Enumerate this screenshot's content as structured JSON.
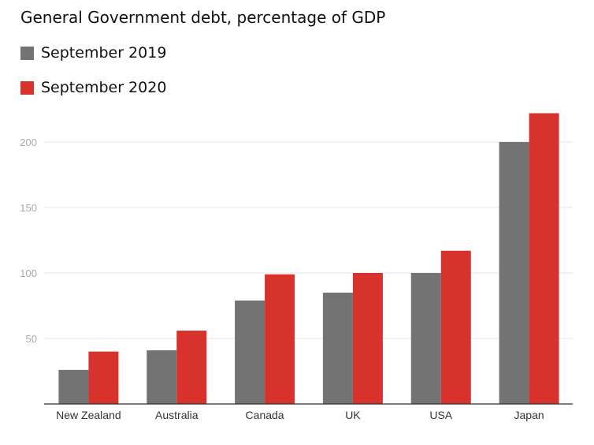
{
  "chart_data": {
    "type": "bar",
    "title": "General Government debt, percentage of GDP",
    "xlabel": "",
    "ylabel": "",
    "categories": [
      "New Zealand",
      "Australia",
      "Canada",
      "UK",
      "USA",
      "Japan"
    ],
    "series": [
      {
        "name": "September 2019",
        "color": "#737373",
        "values": [
          26,
          41,
          79,
          85,
          100,
          200
        ]
      },
      {
        "name": "September 2020",
        "color": "#d7322c",
        "values": [
          40,
          56,
          99,
          100,
          117,
          222
        ]
      }
    ],
    "ylim": [
      0,
      230
    ],
    "yticks": [
      "50",
      "100",
      "150",
      "200"
    ],
    "grid": true,
    "legend": "top-left"
  }
}
